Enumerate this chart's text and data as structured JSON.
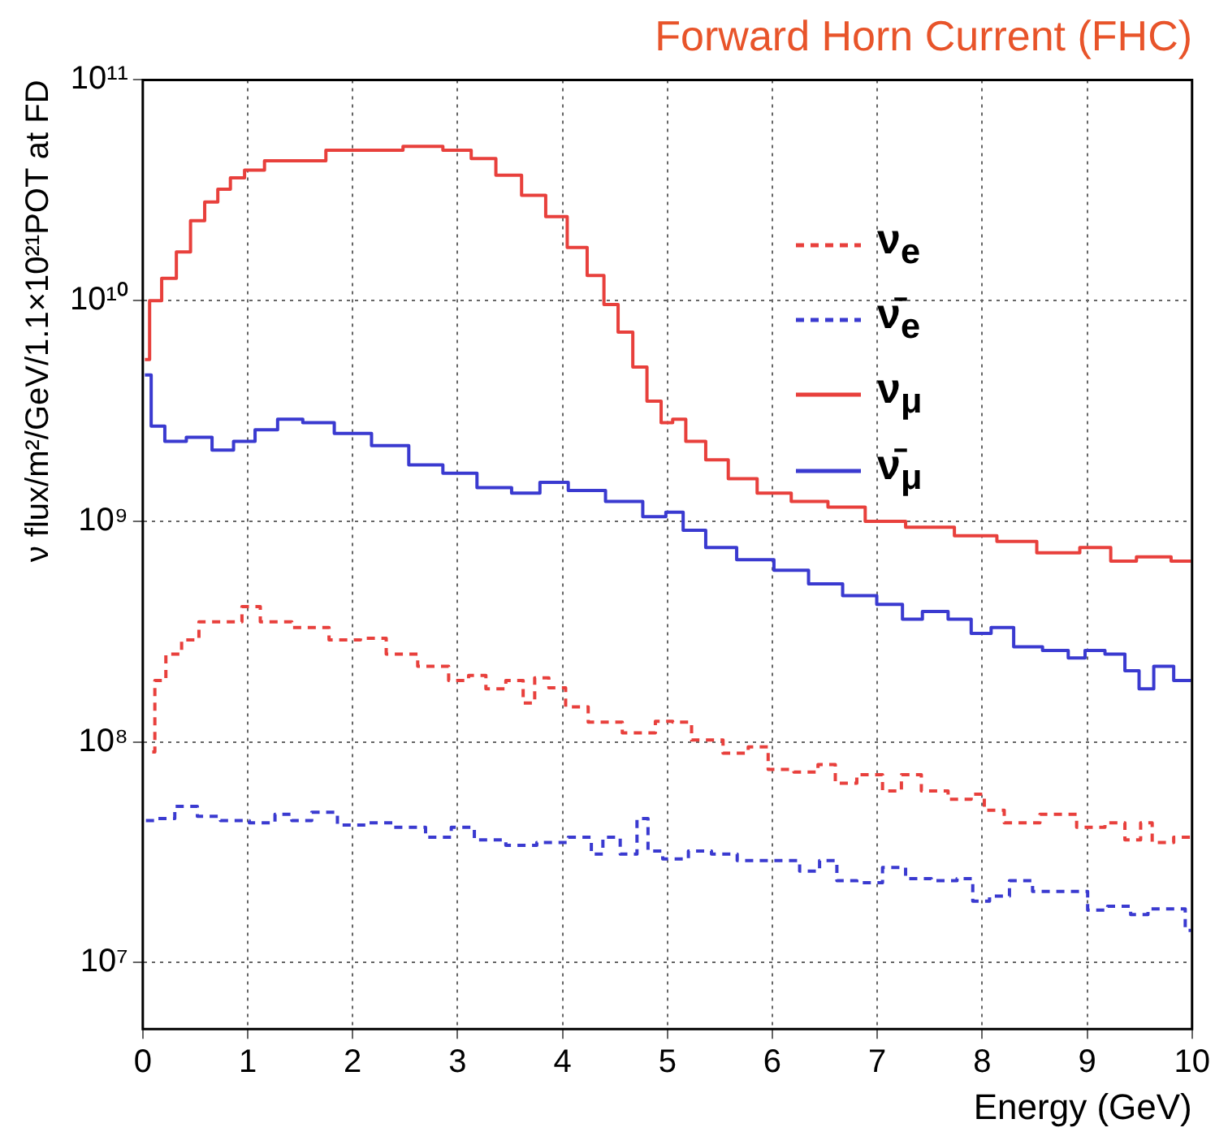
{
  "chart_data": {
    "type": "step",
    "title": "Forward Horn Current (FHC)",
    "xlabel": "Energy (GeV)",
    "ylabel": "ν flux/m²/GeV/1.1×10²¹POT at FD",
    "log": "y",
    "grid": true,
    "legend": "top right",
    "xlim": [
      0,
      10
    ],
    "xticks": [
      0,
      1,
      2,
      3,
      4,
      5,
      6,
      7,
      8,
      9,
      10
    ],
    "ylim": [
      5000000.0,
      100000000000.0
    ],
    "yticks": [
      {
        "value": 10000000.0,
        "label": "10⁷"
      },
      {
        "value": 100000000.0,
        "label": "10⁸"
      },
      {
        "value": 1000000000.0,
        "label": "10⁹"
      },
      {
        "value": 10000000000.0,
        "label": "10¹⁰"
      },
      {
        "value": 100000000000.0,
        "label": "10¹¹"
      }
    ],
    "series": [
      {
        "name": "ν$_{e}$",
        "color": "#e8403c",
        "line_style": "dashed",
        "x": [
          0.09,
          0.14,
          0.3,
          0.44,
          0.63,
          0.88,
          1.01,
          1.23,
          1.61,
          1.94,
          2.21,
          2.43,
          2.81,
          3.02,
          3.19,
          3.35,
          3.57,
          3.68,
          3.79,
          3.95,
          4.11,
          4.38,
          4.76,
          5.01,
          5.09,
          5.37,
          5.69,
          5.85,
          6.07,
          6.34,
          6.53,
          6.67,
          6.94,
          7.16,
          7.3,
          7.54,
          7.81,
          7.98,
          8.06,
          8.36,
          8.74,
          9.06,
          9.28,
          9.44,
          9.58,
          9.66,
          9.99
        ],
        "values": [
          90000000.0,
          190000000.0,
          250000000.0,
          290000000.0,
          350000000.0,
          350000000.0,
          410000000.0,
          350000000.0,
          330000000.0,
          290000000.0,
          295000000.0,
          250000000.0,
          220000000.0,
          190000000.0,
          200000000.0,
          174000000.0,
          190000000.0,
          150000000.0,
          195000000.0,
          176000000.0,
          144000000.0,
          123000000.0,
          110000000.0,
          124000000.0,
          123000000.0,
          102000000.0,
          89000000.0,
          95000000.0,
          75000000.0,
          73000000.0,
          79000000.0,
          65000000.0,
          71000000.0,
          60000000.0,
          71000000.0,
          60000000.0,
          55000000.0,
          58000000.0,
          49000000.0,
          43000000.0,
          47000000.0,
          41000000.0,
          43000000.0,
          36000000.0,
          43000000.0,
          35000000.0,
          37000000.0
        ]
      },
      {
        "name": "ν̄$_{e}$",
        "color": "#3a3ad0",
        "line_style": "dashed",
        "x": [
          0.03,
          0.2,
          0.41,
          0.63,
          0.85,
          1.18,
          1.34,
          1.5,
          1.72,
          1.99,
          2.26,
          2.53,
          2.86,
          3.02,
          3.3,
          3.62,
          3.89,
          4.22,
          4.33,
          4.44,
          4.66,
          4.76,
          4.87,
          5.04,
          5.09,
          5.31,
          5.53,
          5.8,
          6.18,
          6.34,
          6.56,
          6.67,
          6.94,
          7.16,
          7.38,
          7.65,
          7.87,
          7.95,
          8.19,
          8.33,
          8.63,
          8.95,
          9.06,
          9.33,
          9.5,
          9.66,
          9.88,
          9.99
        ],
        "values": [
          44000000.0,
          45000000.0,
          51000000.0,
          46000000.0,
          44000000.0,
          43000000.0,
          47000000.0,
          44000000.0,
          48000000.0,
          42000000.0,
          43000000.0,
          41000000.0,
          37000000.0,
          41000000.0,
          36000000.0,
          34000000.0,
          35000000.0,
          37000000.0,
          31000000.0,
          37000000.0,
          31000000.0,
          45000000.0,
          32000000.0,
          29500000.0,
          29500000.0,
          32000000.0,
          31000000.0,
          29000000.0,
          29000000.0,
          26000000.0,
          29000000.0,
          23500000.0,
          23000000.0,
          27000000.0,
          24000000.0,
          23500000.0,
          24000000.0,
          19000000.0,
          20000000.0,
          23500000.0,
          21000000.0,
          21000000.0,
          17300000.0,
          18000000.0,
          16500000.0,
          17500000.0,
          17500000.0,
          14000000.0
        ]
      },
      {
        "name": "ν$_{μ}$",
        "color": "#e8403c",
        "line_style": "solid",
        "x": [
          0.02,
          0.11,
          0.25,
          0.39,
          0.52,
          0.66,
          0.77,
          0.9,
          1.04,
          1.28,
          1.61,
          1.88,
          2.26,
          2.7,
          3.02,
          3.24,
          3.49,
          3.73,
          3.95,
          4.14,
          4.33,
          4.46,
          4.6,
          4.74,
          4.87,
          5.01,
          5.09,
          5.26,
          5.47,
          5.69,
          6.02,
          6.34,
          6.72,
          7.05,
          7.49,
          7.98,
          8.3,
          8.74,
          9.12,
          9.33,
          9.61,
          9.99
        ],
        "values": [
          5400000000.0,
          10000000000.0,
          12600000000.0,
          16600000000.0,
          23000000000.0,
          28000000000.0,
          32000000000.0,
          36000000000.0,
          39000000000.0,
          43000000000.0,
          43000000000.0,
          48000000000.0,
          48000000000.0,
          50000000000.0,
          48000000000.0,
          44000000000.0,
          37000000000.0,
          30000000000.0,
          24000000000.0,
          17400000000.0,
          13000000000.0,
          9600000000.0,
          7200000000.0,
          5000000000.0,
          3500000000.0,
          2800000000.0,
          2900000000.0,
          2300000000.0,
          1900000000.0,
          1560000000.0,
          1340000000.0,
          1230000000.0,
          1160000000.0,
          1000000000.0,
          940000000.0,
          860000000.0,
          810000000.0,
          720000000.0,
          760000000.0,
          660000000.0,
          690000000.0,
          660000000.0
        ]
      },
      {
        "name": "ν̄$_{μ}$",
        "color": "#3a3ad0",
        "line_style": "solid",
        "x": [
          0.02,
          0.14,
          0.28,
          0.55,
          0.77,
          0.96,
          1.18,
          1.39,
          1.66,
          1.99,
          2.37,
          2.7,
          3.02,
          3.35,
          3.68,
          3.89,
          4.22,
          4.6,
          4.93,
          5.04,
          5.26,
          5.47,
          5.85,
          6.18,
          6.51,
          6.83,
          7.16,
          7.32,
          7.54,
          7.81,
          7.98,
          8.19,
          8.41,
          8.74,
          8.9,
          9.06,
          9.28,
          9.44,
          9.55,
          9.72,
          9.93,
          9.99
        ],
        "values": [
          4600000000.0,
          2700000000.0,
          2300000000.0,
          2400000000.0,
          2100000000.0,
          2300000000.0,
          2600000000.0,
          2900000000.0,
          2800000000.0,
          2500000000.0,
          2200000000.0,
          1800000000.0,
          1650000000.0,
          1420000000.0,
          1340000000.0,
          1500000000.0,
          1380000000.0,
          1230000000.0,
          1050000000.0,
          1100000000.0,
          910000000.0,
          760000000.0,
          670000000.0,
          600000000.0,
          520000000.0,
          460000000.0,
          420000000.0,
          360000000.0,
          390000000.0,
          360000000.0,
          310000000.0,
          330000000.0,
          270000000.0,
          260000000.0,
          240000000.0,
          260000000.0,
          250000000.0,
          210000000.0,
          174000000.0,
          220000000.0,
          190000000.0,
          190000000.0
        ]
      }
    ]
  }
}
